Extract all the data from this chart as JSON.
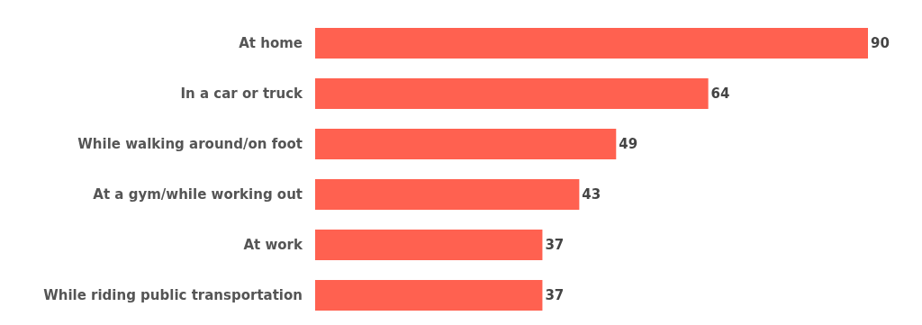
{
  "chart_data": {
    "type": "bar",
    "orientation": "horizontal",
    "categories": [
      "At home",
      "In a car or truck",
      "While walking around/on foot",
      "At a gym/while working out",
      "At work",
      "While riding public transportation"
    ],
    "values": [
      90,
      64,
      49,
      43,
      37,
      37
    ],
    "color": "#ff6150",
    "data_labels": true
  }
}
